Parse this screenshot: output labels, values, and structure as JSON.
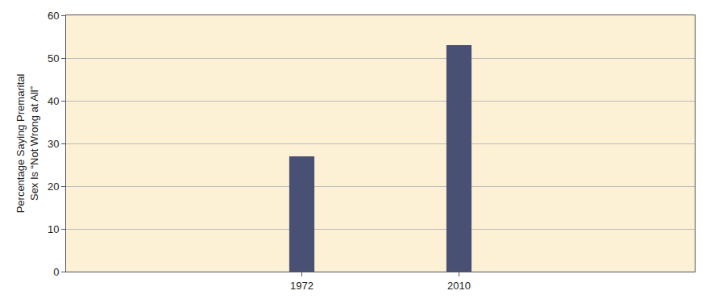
{
  "chart_data": {
    "type": "bar",
    "y_label": "Percentage Saying Premarital\nSex Is “Not Wrong at All”",
    "categories": [
      null,
      "1972",
      "2010",
      null
    ],
    "values": [
      null,
      27,
      53,
      null
    ],
    "color": "#485173",
    "ylim": [
      0,
      60
    ],
    "yticks": [
      0,
      10,
      20,
      30,
      40,
      50,
      60
    ],
    "grid": true
  }
}
